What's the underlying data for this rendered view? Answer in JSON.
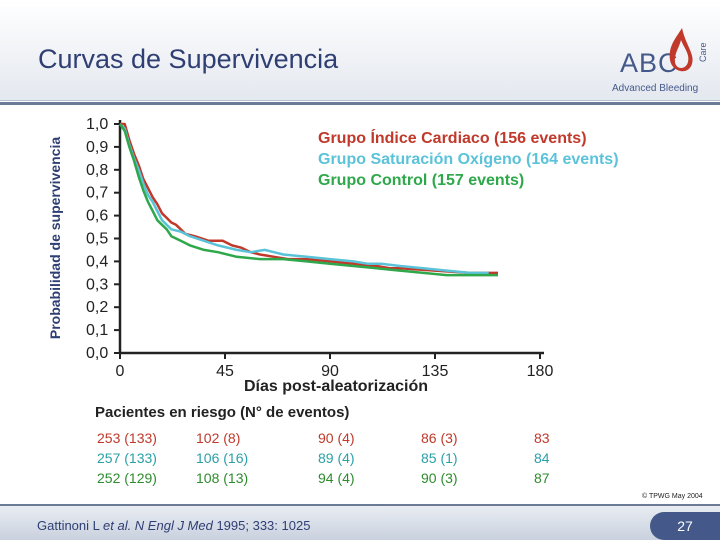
{
  "slide": {
    "title": "Curvas de Supervivencia",
    "logo_text": "ABC",
    "logo_side": "Care",
    "logo_sub": "Advanced Bleeding",
    "copyright": "© TPWG May 2004",
    "citation": {
      "authors": "Gattinoni L ",
      "etal": "et al. N Engl J Med",
      "rest": " 1995; 333: 1025"
    },
    "page_number": "27"
  },
  "chart_data": {
    "type": "line",
    "title": "",
    "xlabel": "Días post-aleatorización",
    "ylabel": "Probabilidad de supervivencia",
    "xlim": [
      0,
      180
    ],
    "ylim": [
      0,
      1
    ],
    "x_ticks": [
      "0",
      "45",
      "90",
      "135",
      "180"
    ],
    "y_ticks": [
      "0,0",
      "0,1",
      "0,2",
      "0,3",
      "0,4",
      "0,5",
      "0,6",
      "0,7",
      "0,8",
      "0,9",
      "1,0"
    ],
    "legend_position": "top-right",
    "series": [
      {
        "name": "Grupo Índice Cardiaco (156 events)",
        "color": "#c0392b",
        "points": [
          [
            0,
            1.0
          ],
          [
            2,
            1.0
          ],
          [
            4,
            0.93
          ],
          [
            6,
            0.87
          ],
          [
            8,
            0.82
          ],
          [
            10,
            0.76
          ],
          [
            12,
            0.72
          ],
          [
            14,
            0.68
          ],
          [
            16,
            0.65
          ],
          [
            18,
            0.61
          ],
          [
            20,
            0.59
          ],
          [
            22,
            0.57
          ],
          [
            24,
            0.56
          ],
          [
            26,
            0.54
          ],
          [
            28,
            0.52
          ],
          [
            32,
            0.51
          ],
          [
            38,
            0.49
          ],
          [
            44,
            0.49
          ],
          [
            48,
            0.47
          ],
          [
            52,
            0.46
          ],
          [
            56,
            0.44
          ],
          [
            60,
            0.43
          ],
          [
            66,
            0.42
          ],
          [
            72,
            0.41
          ],
          [
            80,
            0.41
          ],
          [
            90,
            0.4
          ],
          [
            100,
            0.39
          ],
          [
            110,
            0.38
          ],
          [
            116,
            0.37
          ],
          [
            120,
            0.37
          ],
          [
            135,
            0.36
          ],
          [
            150,
            0.35
          ],
          [
            162,
            0.35
          ]
        ]
      },
      {
        "name": "Grupo Saturación Oxígeno (164 events)",
        "color": "#5bc3d9",
        "points": [
          [
            0,
            1.0
          ],
          [
            2,
            0.98
          ],
          [
            4,
            0.91
          ],
          [
            6,
            0.85
          ],
          [
            8,
            0.8
          ],
          [
            10,
            0.74
          ],
          [
            12,
            0.69
          ],
          [
            14,
            0.66
          ],
          [
            16,
            0.62
          ],
          [
            18,
            0.58
          ],
          [
            20,
            0.56
          ],
          [
            22,
            0.54
          ],
          [
            26,
            0.53
          ],
          [
            30,
            0.51
          ],
          [
            36,
            0.49
          ],
          [
            42,
            0.47
          ],
          [
            50,
            0.45
          ],
          [
            56,
            0.44
          ],
          [
            62,
            0.45
          ],
          [
            66,
            0.44
          ],
          [
            70,
            0.43
          ],
          [
            80,
            0.42
          ],
          [
            90,
            0.41
          ],
          [
            100,
            0.4
          ],
          [
            106,
            0.39
          ],
          [
            112,
            0.39
          ],
          [
            120,
            0.38
          ],
          [
            130,
            0.37
          ],
          [
            140,
            0.36
          ],
          [
            150,
            0.35
          ],
          [
            158,
            0.35
          ]
        ]
      },
      {
        "name": "Grupo Control (157 events)",
        "color": "#2ea84a",
        "points": [
          [
            0,
            1.0
          ],
          [
            2,
            0.97
          ],
          [
            4,
            0.9
          ],
          [
            6,
            0.84
          ],
          [
            8,
            0.77
          ],
          [
            10,
            0.71
          ],
          [
            12,
            0.66
          ],
          [
            14,
            0.62
          ],
          [
            16,
            0.58
          ],
          [
            18,
            0.56
          ],
          [
            20,
            0.54
          ],
          [
            22,
            0.51
          ],
          [
            26,
            0.49
          ],
          [
            30,
            0.47
          ],
          [
            36,
            0.45
          ],
          [
            42,
            0.44
          ],
          [
            50,
            0.42
          ],
          [
            60,
            0.41
          ],
          [
            70,
            0.41
          ],
          [
            80,
            0.4
          ],
          [
            90,
            0.39
          ],
          [
            100,
            0.38
          ],
          [
            110,
            0.37
          ],
          [
            120,
            0.36
          ],
          [
            130,
            0.35
          ],
          [
            140,
            0.34
          ],
          [
            150,
            0.34
          ],
          [
            162,
            0.34
          ]
        ]
      }
    ],
    "risk_table": {
      "title": "Pacientes en riesgo (N° de eventos)",
      "columns": [
        [
          "253 (133)",
          "257 (133)",
          "252 (129)"
        ],
        [
          "102 (8)",
          "106 (16)",
          "108 (13)"
        ],
        [
          "90 (4)",
          "89 (4)",
          "94 (4)"
        ],
        [
          "86 (3)",
          "85 (1)",
          "90 (3)"
        ],
        [
          "83",
          "84",
          "87"
        ]
      ]
    }
  }
}
